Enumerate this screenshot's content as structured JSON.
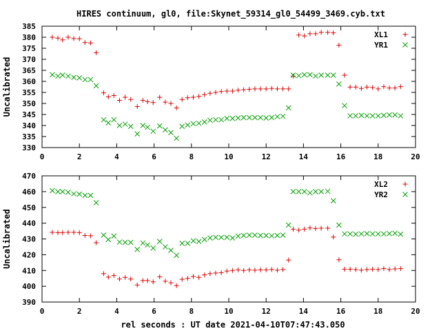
{
  "title": "HIRES continuum, gl0, file:Skynet_59314_gl0_54499_3469.cyb.txt",
  "xlabel": "rel seconds : UT date 2021-04-10T07:47:43.050",
  "chart_data": [
    {
      "type": "scatter",
      "title": "",
      "xlabel": "",
      "ylabel": "Uncalibrated",
      "xlim": [
        0,
        20
      ],
      "ylim": [
        330,
        385
      ],
      "xticks": [
        0,
        2,
        4,
        6,
        8,
        10,
        12,
        14,
        16,
        18,
        20
      ],
      "yticks": [
        330,
        335,
        340,
        345,
        350,
        355,
        360,
        365,
        370,
        375,
        380,
        385
      ],
      "legend": "top-right",
      "series": [
        {
          "name": "XL1",
          "color": "#e00000",
          "marker": "plus",
          "x": [
            0.55,
            0.85,
            1.1,
            1.4,
            1.7,
            2.0,
            2.3,
            2.6,
            2.9,
            3.3,
            3.55,
            3.85,
            4.15,
            4.45,
            4.75,
            5.1,
            5.4,
            5.65,
            5.95,
            6.3,
            6.6,
            6.9,
            7.2,
            7.5,
            7.8,
            8.1,
            8.4,
            8.7,
            9.0,
            9.3,
            9.6,
            9.9,
            10.2,
            10.5,
            10.8,
            11.1,
            11.4,
            11.7,
            12.0,
            12.3,
            12.6,
            12.9,
            13.2,
            13.45,
            13.75,
            14.05,
            14.35,
            14.65,
            14.95,
            15.3,
            15.6,
            15.9,
            16.2,
            16.5,
            16.8,
            17.1,
            17.4,
            17.7,
            18.0,
            18.3,
            18.6,
            18.9,
            19.2
          ],
          "y": [
            380,
            379.6,
            378.8,
            380,
            379.4,
            379.3,
            377.6,
            377.4,
            373,
            354.8,
            353,
            353.6,
            351.4,
            352.8,
            351.8,
            348.6,
            351.4,
            350.8,
            350.4,
            352.8,
            350.6,
            350,
            348,
            351.8,
            352.6,
            352.8,
            353.2,
            354,
            354.6,
            355,
            355.4,
            355.6,
            355.6,
            356,
            356.2,
            356.4,
            356.6,
            356.6,
            356.6,
            356.8,
            356.6,
            356.6,
            356.6,
            362.4,
            381,
            380.6,
            381.6,
            381.6,
            382.2,
            382.2,
            382,
            376.4,
            362.8,
            357.4,
            357.4,
            356.8,
            357.4,
            357.2,
            356.6,
            357.6,
            357,
            357,
            357.6
          ]
        },
        {
          "name": "YR1",
          "color": "#00a000",
          "marker": "cross",
          "x": [
            0.55,
            0.85,
            1.1,
            1.4,
            1.7,
            2.0,
            2.3,
            2.6,
            2.9,
            3.3,
            3.55,
            3.85,
            4.15,
            4.45,
            4.75,
            5.1,
            5.4,
            5.65,
            5.95,
            6.3,
            6.6,
            6.9,
            7.2,
            7.5,
            7.8,
            8.1,
            8.4,
            8.7,
            9.0,
            9.3,
            9.6,
            9.9,
            10.2,
            10.5,
            10.8,
            11.1,
            11.4,
            11.7,
            12.0,
            12.3,
            12.6,
            12.9,
            13.2,
            13.45,
            13.75,
            14.05,
            14.35,
            14.65,
            14.95,
            15.3,
            15.6,
            15.9,
            16.2,
            16.5,
            16.8,
            17.1,
            17.4,
            17.7,
            18.0,
            18.3,
            18.6,
            18.9,
            19.2
          ],
          "y": [
            363,
            362.4,
            362.8,
            362.4,
            361.8,
            361.6,
            360.8,
            360.8,
            358,
            342.6,
            341.2,
            342.6,
            340,
            340.6,
            339.6,
            336.2,
            340,
            339.2,
            337.4,
            339.8,
            338,
            336.8,
            334.2,
            339.6,
            340.2,
            340.8,
            341,
            341.6,
            342.4,
            342.6,
            342.6,
            343.2,
            343.2,
            343.4,
            343.6,
            343.6,
            343.6,
            343.6,
            343.4,
            343.6,
            344,
            344.2,
            348,
            362.8,
            362.6,
            363,
            363,
            362.4,
            362.8,
            362.8,
            362.8,
            358.8,
            349,
            344.4,
            344.4,
            344.6,
            344.4,
            344.4,
            344.4,
            344.6,
            344.8,
            344.8,
            344.4
          ]
        }
      ]
    },
    {
      "type": "scatter",
      "title": "",
      "xlabel": "rel seconds : UT date 2021-04-10T07:47:43.050",
      "ylabel": "Uncalibrated",
      "xlim": [
        0,
        20
      ],
      "ylim": [
        390,
        470
      ],
      "xticks": [
        0,
        2,
        4,
        6,
        8,
        10,
        12,
        14,
        16,
        18,
        20
      ],
      "yticks": [
        390,
        400,
        410,
        420,
        430,
        440,
        450,
        460,
        470
      ],
      "legend": "top-right",
      "series": [
        {
          "name": "XL2",
          "color": "#e00000",
          "marker": "plus",
          "x": [
            0.55,
            0.85,
            1.1,
            1.4,
            1.7,
            2.0,
            2.3,
            2.6,
            2.9,
            3.3,
            3.55,
            3.85,
            4.15,
            4.45,
            4.75,
            5.1,
            5.4,
            5.65,
            5.95,
            6.3,
            6.6,
            6.9,
            7.2,
            7.5,
            7.8,
            8.1,
            8.4,
            8.7,
            9.0,
            9.3,
            9.6,
            9.9,
            10.2,
            10.5,
            10.8,
            11.1,
            11.4,
            11.7,
            12.0,
            12.3,
            12.6,
            12.9,
            13.2,
            13.45,
            13.75,
            14.05,
            14.35,
            14.65,
            14.95,
            15.3,
            15.6,
            15.9,
            16.2,
            16.5,
            16.8,
            17.1,
            17.4,
            17.7,
            18.0,
            18.3,
            18.6,
            18.9,
            19.2
          ],
          "y": [
            434.2,
            434,
            434,
            434.2,
            434.2,
            434,
            432.2,
            432,
            427.6,
            408,
            405.8,
            406.8,
            404.6,
            405.6,
            404.6,
            400.8,
            403.6,
            403.6,
            402.8,
            406,
            403.2,
            402.2,
            400.4,
            404.4,
            405,
            406.2,
            405.6,
            407.2,
            408,
            408.4,
            408.6,
            409.6,
            410,
            410.4,
            410,
            410.4,
            410.2,
            410.4,
            410.4,
            410.6,
            410.2,
            410.6,
            416.6,
            436.2,
            435.6,
            436.2,
            437,
            436.6,
            436.8,
            436.8,
            431.2,
            416.8,
            410.8,
            410.8,
            410.6,
            410.2,
            410.6,
            410.8,
            410.6,
            411.2,
            410.6,
            411,
            411.2
          ]
        },
        {
          "name": "YR2",
          "color": "#00a000",
          "marker": "cross",
          "x": [
            0.55,
            0.85,
            1.1,
            1.4,
            1.7,
            2.0,
            2.3,
            2.6,
            2.9,
            3.3,
            3.55,
            3.85,
            4.15,
            4.45,
            4.75,
            5.1,
            5.4,
            5.65,
            5.95,
            6.3,
            6.6,
            6.9,
            7.2,
            7.5,
            7.8,
            8.1,
            8.4,
            8.7,
            9.0,
            9.3,
            9.6,
            9.9,
            10.2,
            10.5,
            10.8,
            11.1,
            11.4,
            11.7,
            12.0,
            12.3,
            12.6,
            12.9,
            13.2,
            13.45,
            13.75,
            14.05,
            14.35,
            14.65,
            14.95,
            15.3,
            15.6,
            15.9,
            16.2,
            16.5,
            16.8,
            17.1,
            17.4,
            17.7,
            18.0,
            18.3,
            18.6,
            18.9,
            19.2
          ],
          "y": [
            460.6,
            460,
            460,
            459.6,
            458.6,
            458.4,
            457.6,
            457.6,
            453,
            432.4,
            429.6,
            431.8,
            428,
            427.8,
            427.8,
            423.4,
            427.4,
            426.2,
            424.2,
            428.4,
            425,
            422.8,
            419.6,
            427.2,
            427.2,
            428.8,
            428.4,
            429.6,
            430.6,
            431,
            431,
            431,
            430.6,
            431.8,
            432.2,
            432.4,
            432.4,
            432.2,
            432.2,
            432,
            432.2,
            432.4,
            438.8,
            460,
            460,
            460,
            459.2,
            460,
            460,
            460.2,
            454.2,
            438.8,
            433.2,
            433.2,
            433,
            433.2,
            433.4,
            433.2,
            433.2,
            433.2,
            433.4,
            433.6,
            433
          ]
        }
      ]
    }
  ]
}
